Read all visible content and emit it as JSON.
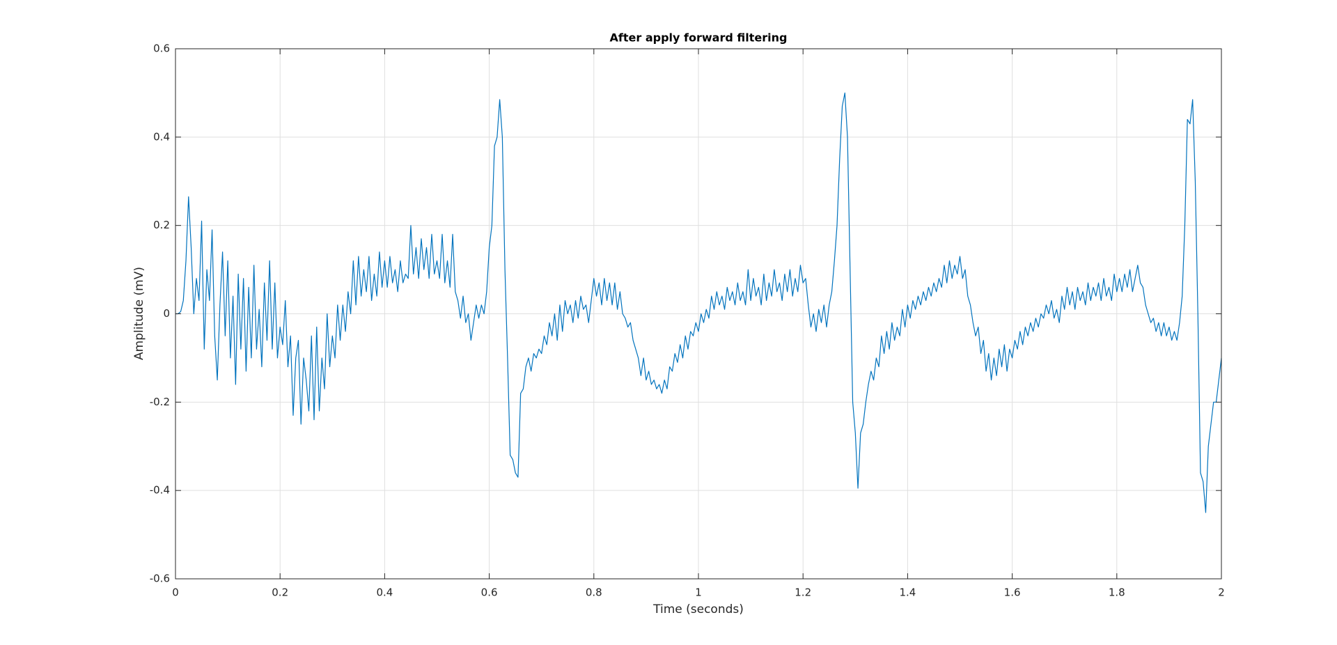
{
  "chart_data": {
    "type": "line",
    "title": "After apply forward filtering",
    "x_label": "Time (seconds)",
    "y_label": "Amplitude (mV)",
    "color": "#0072bd",
    "grid": true,
    "xlim": [
      0,
      2
    ],
    "ylim": [
      -0.6,
      0.6
    ],
    "xticks": [
      0,
      0.2,
      0.4,
      0.6,
      0.8,
      1,
      1.2,
      1.4,
      1.6,
      1.8,
      2
    ],
    "yticks": [
      -0.6,
      -0.4,
      -0.2,
      0,
      0.2,
      0.4,
      0.6
    ],
    "x": [
      0,
      0.005,
      0.01,
      0.015,
      0.02,
      0.025,
      0.03,
      0.035,
      0.04,
      0.045,
      0.05,
      0.055,
      0.06,
      0.065,
      0.07,
      0.075,
      0.08,
      0.085,
      0.09,
      0.095,
      0.1,
      0.105,
      0.11,
      0.115,
      0.12,
      0.125,
      0.13,
      0.135,
      0.14,
      0.145,
      0.15,
      0.155,
      0.16,
      0.165,
      0.17,
      0.175,
      0.18,
      0.185,
      0.19,
      0.195,
      0.2,
      0.205,
      0.21,
      0.215,
      0.22,
      0.225,
      0.23,
      0.235,
      0.24,
      0.245,
      0.25,
      0.255,
      0.26,
      0.265,
      0.27,
      0.275,
      0.28,
      0.285,
      0.29,
      0.295,
      0.3,
      0.305,
      0.31,
      0.315,
      0.32,
      0.325,
      0.33,
      0.335,
      0.34,
      0.345,
      0.35,
      0.355,
      0.36,
      0.365,
      0.37,
      0.375,
      0.38,
      0.385,
      0.39,
      0.395,
      0.4,
      0.405,
      0.41,
      0.415,
      0.42,
      0.425,
      0.43,
      0.435,
      0.44,
      0.445,
      0.45,
      0.455,
      0.46,
      0.465,
      0.47,
      0.475,
      0.48,
      0.485,
      0.49,
      0.495,
      0.5,
      0.505,
      0.51,
      0.515,
      0.52,
      0.525,
      0.53,
      0.535,
      0.54,
      0.545,
      0.55,
      0.555,
      0.56,
      0.565,
      0.57,
      0.575,
      0.58,
      0.585,
      0.59,
      0.595,
      0.6,
      0.605,
      0.61,
      0.615,
      0.62,
      0.625,
      0.63,
      0.635,
      0.64,
      0.645,
      0.65,
      0.655,
      0.66,
      0.665,
      0.67,
      0.675,
      0.68,
      0.685,
      0.69,
      0.695,
      0.7,
      0.705,
      0.71,
      0.715,
      0.72,
      0.725,
      0.73,
      0.735,
      0.74,
      0.745,
      0.75,
      0.755,
      0.76,
      0.765,
      0.77,
      0.775,
      0.78,
      0.785,
      0.79,
      0.795,
      0.8,
      0.805,
      0.81,
      0.815,
      0.82,
      0.825,
      0.83,
      0.835,
      0.84,
      0.845,
      0.85,
      0.855,
      0.86,
      0.865,
      0.87,
      0.875,
      0.88,
      0.885,
      0.89,
      0.895,
      0.9,
      0.905,
      0.91,
      0.915,
      0.92,
      0.925,
      0.93,
      0.935,
      0.94,
      0.945,
      0.95,
      0.955,
      0.96,
      0.965,
      0.97,
      0.975,
      0.98,
      0.985,
      0.99,
      0.995,
      1,
      1.005,
      1.01,
      1.015,
      1.02,
      1.025,
      1.03,
      1.035,
      1.04,
      1.045,
      1.05,
      1.055,
      1.06,
      1.065,
      1.07,
      1.075,
      1.08,
      1.085,
      1.09,
      1.095,
      1.1,
      1.105,
      1.11,
      1.115,
      1.12,
      1.125,
      1.13,
      1.135,
      1.14,
      1.145,
      1.15,
      1.155,
      1.16,
      1.165,
      1.17,
      1.175,
      1.18,
      1.185,
      1.19,
      1.195,
      1.2,
      1.205,
      1.21,
      1.215,
      1.22,
      1.225,
      1.23,
      1.235,
      1.24,
      1.245,
      1.25,
      1.255,
      1.26,
      1.265,
      1.27,
      1.275,
      1.28,
      1.285,
      1.29,
      1.295,
      1.3,
      1.305,
      1.31,
      1.315,
      1.32,
      1.325,
      1.33,
      1.335,
      1.34,
      1.345,
      1.35,
      1.355,
      1.36,
      1.365,
      1.37,
      1.375,
      1.38,
      1.385,
      1.39,
      1.395,
      1.4,
      1.405,
      1.41,
      1.415,
      1.42,
      1.425,
      1.43,
      1.435,
      1.44,
      1.445,
      1.45,
      1.455,
      1.46,
      1.465,
      1.47,
      1.475,
      1.48,
      1.485,
      1.49,
      1.495,
      1.5,
      1.505,
      1.51,
      1.515,
      1.52,
      1.525,
      1.53,
      1.535,
      1.54,
      1.545,
      1.55,
      1.555,
      1.56,
      1.565,
      1.57,
      1.575,
      1.58,
      1.585,
      1.59,
      1.595,
      1.6,
      1.605,
      1.61,
      1.615,
      1.62,
      1.625,
      1.63,
      1.635,
      1.64,
      1.645,
      1.65,
      1.655,
      1.66,
      1.665,
      1.67,
      1.675,
      1.68,
      1.685,
      1.69,
      1.695,
      1.7,
      1.705,
      1.71,
      1.715,
      1.72,
      1.725,
      1.73,
      1.735,
      1.74,
      1.745,
      1.75,
      1.755,
      1.76,
      1.765,
      1.77,
      1.775,
      1.78,
      1.785,
      1.79,
      1.795,
      1.8,
      1.805,
      1.81,
      1.815,
      1.82,
      1.825,
      1.83,
      1.835,
      1.84,
      1.845,
      1.85,
      1.855,
      1.86,
      1.865,
      1.87,
      1.875,
      1.88,
      1.885,
      1.89,
      1.895,
      1.9,
      1.905,
      1.91,
      1.915,
      1.92,
      1.925,
      1.93,
      1.935,
      1.94,
      1.945,
      1.95,
      1.955,
      1.96,
      1.965,
      1.97,
      1.975,
      1.98,
      1.985,
      1.99,
      1.995,
      2
    ],
    "values": [
      0,
      0,
      0.005,
      0.03,
      0.12,
      0.265,
      0.15,
      0,
      0.08,
      0.03,
      0.21,
      -0.08,
      0.1,
      0.03,
      0.19,
      -0.05,
      -0.15,
      0.02,
      0.14,
      -0.05,
      0.12,
      -0.1,
      0.04,
      -0.16,
      0.09,
      -0.08,
      0.08,
      -0.13,
      0.06,
      -0.1,
      0.11,
      -0.08,
      0.01,
      -0.12,
      0.07,
      -0.06,
      0.12,
      -0.08,
      0.07,
      -0.1,
      -0.03,
      -0.07,
      0.03,
      -0.12,
      -0.05,
      -0.23,
      -0.1,
      -0.06,
      -0.25,
      -0.1,
      -0.15,
      -0.22,
      -0.05,
      -0.24,
      -0.03,
      -0.22,
      -0.1,
      -0.17,
      0,
      -0.12,
      -0.05,
      -0.1,
      0.02,
      -0.06,
      0.02,
      -0.04,
      0.05,
      0,
      0.12,
      0.02,
      0.13,
      0.04,
      0.1,
      0.05,
      0.13,
      0.03,
      0.09,
      0.04,
      0.14,
      0.06,
      0.12,
      0.06,
      0.13,
      0.07,
      0.1,
      0.05,
      0.12,
      0.07,
      0.09,
      0.08,
      0.2,
      0.09,
      0.15,
      0.08,
      0.17,
      0.1,
      0.15,
      0.08,
      0.18,
      0.09,
      0.12,
      0.08,
      0.18,
      0.07,
      0.12,
      0.06,
      0.18,
      0.05,
      0.03,
      -0.01,
      0.04,
      -0.02,
      0,
      -0.06,
      -0.02,
      0.02,
      -0.01,
      0.02,
      0,
      0.05,
      0.15,
      0.2,
      0.38,
      0.4,
      0.485,
      0.4,
      0.1,
      -0.1,
      -0.32,
      -0.33,
      -0.36,
      -0.37,
      -0.18,
      -0.17,
      -0.12,
      -0.1,
      -0.13,
      -0.09,
      -0.1,
      -0.08,
      -0.09,
      -0.05,
      -0.07,
      -0.02,
      -0.05,
      0,
      -0.06,
      0.02,
      -0.04,
      0.03,
      0,
      0.02,
      -0.02,
      0.03,
      -0.01,
      0.04,
      0.01,
      0.02,
      -0.02,
      0.03,
      0.08,
      0.04,
      0.07,
      0.02,
      0.08,
      0.03,
      0.07,
      0.02,
      0.07,
      0.01,
      0.05,
      0,
      -0.01,
      -0.03,
      -0.02,
      -0.06,
      -0.08,
      -0.1,
      -0.14,
      -0.1,
      -0.15,
      -0.13,
      -0.16,
      -0.15,
      -0.17,
      -0.16,
      -0.18,
      -0.15,
      -0.17,
      -0.12,
      -0.13,
      -0.09,
      -0.11,
      -0.07,
      -0.1,
      -0.05,
      -0.08,
      -0.04,
      -0.05,
      -0.02,
      -0.04,
      0,
      -0.02,
      0.01,
      -0.01,
      0.04,
      0.01,
      0.05,
      0.02,
      0.04,
      0.01,
      0.06,
      0.03,
      0.05,
      0.02,
      0.07,
      0.03,
      0.05,
      0.02,
      0.1,
      0.03,
      0.08,
      0.04,
      0.06,
      0.02,
      0.09,
      0.03,
      0.07,
      0.04,
      0.1,
      0.05,
      0.07,
      0.03,
      0.09,
      0.05,
      0.1,
      0.04,
      0.08,
      0.05,
      0.11,
      0.07,
      0.08,
      0.02,
      -0.03,
      0,
      -0.04,
      0.01,
      -0.02,
      0.02,
      -0.03,
      0.02,
      0.05,
      0.12,
      0.2,
      0.35,
      0.47,
      0.5,
      0.4,
      0.1,
      -0.2,
      -0.27,
      -0.395,
      -0.27,
      -0.25,
      -0.2,
      -0.16,
      -0.13,
      -0.15,
      -0.1,
      -0.12,
      -0.05,
      -0.09,
      -0.04,
      -0.08,
      -0.02,
      -0.06,
      -0.03,
      -0.05,
      0.01,
      -0.03,
      0.02,
      -0.01,
      0.03,
      0.01,
      0.04,
      0.02,
      0.05,
      0.03,
      0.06,
      0.04,
      0.07,
      0.05,
      0.08,
      0.06,
      0.11,
      0.07,
      0.12,
      0.08,
      0.11,
      0.09,
      0.13,
      0.08,
      0.1,
      0.04,
      0.02,
      -0.02,
      -0.05,
      -0.03,
      -0.09,
      -0.06,
      -0.13,
      -0.09,
      -0.15,
      -0.1,
      -0.14,
      -0.08,
      -0.12,
      -0.07,
      -0.13,
      -0.08,
      -0.1,
      -0.06,
      -0.08,
      -0.04,
      -0.07,
      -0.03,
      -0.05,
      -0.02,
      -0.04,
      -0.01,
      -0.03,
      0,
      -0.01,
      0.02,
      0,
      0.03,
      -0.01,
      0.01,
      -0.02,
      0.04,
      0.01,
      0.06,
      0.02,
      0.05,
      0.01,
      0.06,
      0.03,
      0.05,
      0.02,
      0.07,
      0.03,
      0.06,
      0.04,
      0.07,
      0.03,
      0.08,
      0.04,
      0.06,
      0.03,
      0.09,
      0.05,
      0.08,
      0.05,
      0.09,
      0.06,
      0.1,
      0.05,
      0.08,
      0.11,
      0.07,
      0.06,
      0.02,
      0,
      -0.02,
      -0.01,
      -0.04,
      -0.02,
      -0.05,
      -0.02,
      -0.05,
      -0.03,
      -0.06,
      -0.04,
      -0.06,
      -0.02,
      0.04,
      0.2,
      0.44,
      0.43,
      0.485,
      0.3,
      0,
      -0.36,
      -0.38,
      -0.45,
      -0.3,
      -0.25,
      -0.2,
      -0.2,
      -0.15,
      -0.1
    ]
  }
}
